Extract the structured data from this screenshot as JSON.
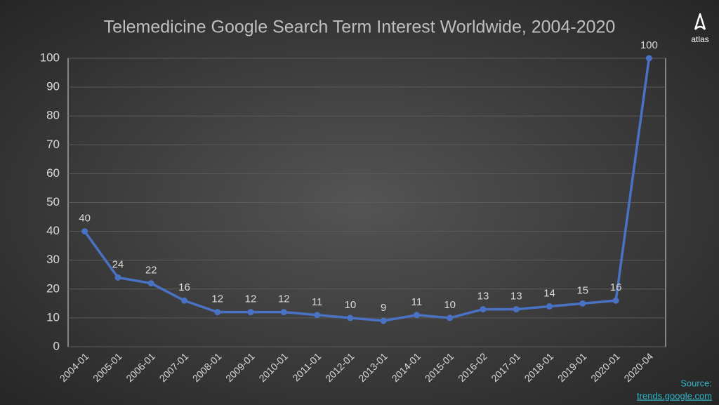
{
  "chart_data": {
    "type": "line",
    "title": "Telemedicine  Google Search Term Interest  Worldwide, 2004-2020",
    "categories": [
      "2004-01",
      "2005-01",
      "2006-01",
      "2007-01",
      "2008-01",
      "2009-01",
      "2010-01",
      "2011-01",
      "2012-01",
      "2013-01",
      "2014-01",
      "2015-01",
      "2016-02",
      "2017-01",
      "2018-01",
      "2019-01",
      "2020-01",
      "2020-04"
    ],
    "values": [
      40,
      24,
      22,
      16,
      12,
      12,
      12,
      11,
      10,
      9,
      11,
      10,
      13,
      13,
      14,
      15,
      16,
      100
    ],
    "color": "#4a72c4",
    "ylim": [
      0,
      100
    ],
    "yticks": [
      0,
      10,
      20,
      30,
      40,
      50,
      60,
      70,
      80,
      90,
      100
    ],
    "grid": true,
    "data_labels": true
  },
  "logo": "atlas",
  "source": {
    "label": "Source:",
    "link": "trends.google.com"
  }
}
